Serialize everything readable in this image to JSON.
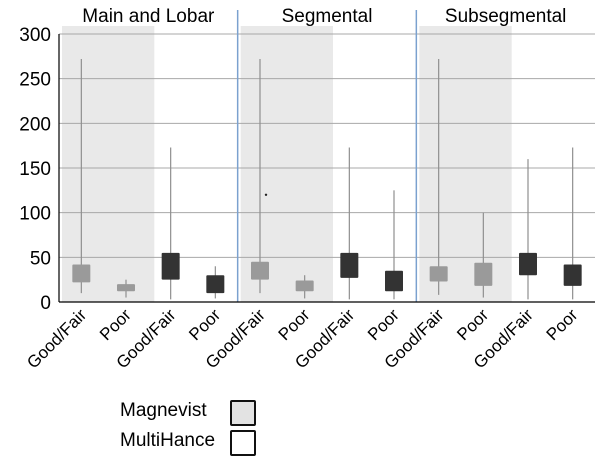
{
  "chart_data": {
    "type": "boxplot",
    "ylim": [
      0,
      300
    ],
    "yticks": [
      0,
      50,
      100,
      150,
      200,
      250,
      300
    ],
    "grid": true,
    "groups": [
      {
        "label": "Main and Lobar"
      },
      {
        "label": "Segmental"
      },
      {
        "label": "Subsegmental"
      }
    ],
    "categories": [
      "Good/Fair",
      "Poor",
      "Good/Fair",
      "Poor",
      "Good/Fair",
      "Poor",
      "Good/Fair",
      "Poor",
      "Good/Fair",
      "Poor",
      "Good/Fair",
      "Poor"
    ],
    "boxes": [
      {
        "group": 0,
        "series": "Magnevist",
        "category": "Good/Fair",
        "min": 10,
        "q1": 22,
        "q3": 42,
        "max": 272
      },
      {
        "group": 0,
        "series": "Magnevist",
        "category": "Poor",
        "min": 5,
        "q1": 12,
        "q3": 20,
        "max": 25
      },
      {
        "group": 0,
        "series": "MultiHance",
        "category": "Good/Fair",
        "min": 3,
        "q1": 25,
        "q3": 55,
        "max": 173
      },
      {
        "group": 0,
        "series": "MultiHance",
        "category": "Poor",
        "min": 4,
        "q1": 10,
        "q3": 30,
        "max": 40
      },
      {
        "group": 1,
        "series": "Magnevist",
        "category": "Good/Fair",
        "min": 10,
        "q1": 25,
        "q3": 45,
        "max": 272
      },
      {
        "group": 1,
        "series": "Magnevist",
        "category": "Poor",
        "min": 4,
        "q1": 12,
        "q3": 24,
        "max": 30
      },
      {
        "group": 1,
        "series": "MultiHance",
        "category": "Good/Fair",
        "min": 3,
        "q1": 27,
        "q3": 55,
        "max": 173
      },
      {
        "group": 1,
        "series": "MultiHance",
        "category": "Poor",
        "min": 3,
        "q1": 12,
        "q3": 35,
        "max": 125
      },
      {
        "group": 2,
        "series": "Magnevist",
        "category": "Good/Fair",
        "min": 8,
        "q1": 23,
        "q3": 40,
        "max": 272
      },
      {
        "group": 2,
        "series": "Magnevist",
        "category": "Poor",
        "min": 5,
        "q1": 18,
        "q3": 44,
        "max": 100
      },
      {
        "group": 2,
        "series": "MultiHance",
        "category": "Good/Fair",
        "min": 3,
        "q1": 30,
        "q3": 55,
        "max": 160
      },
      {
        "group": 2,
        "series": "MultiHance",
        "category": "Poor",
        "min": 3,
        "q1": 18,
        "q3": 42,
        "max": 173
      }
    ],
    "outliers": [
      {
        "group": 1,
        "category_index": 4,
        "value": 120
      }
    ],
    "legend": [
      {
        "name": "Magnevist",
        "swatch": "#e3e3e3"
      },
      {
        "name": "MultiHance",
        "swatch": "#ffffff"
      }
    ],
    "legend_position": "bottom-left",
    "colors": {
      "magnevist_box": "#9a9a9a",
      "multihance_box": "#333333",
      "shade": "#e9e9e9",
      "grid": "#a8a8a8",
      "separator": "#7ba1cf",
      "whisker": "#8f8f8f"
    }
  }
}
